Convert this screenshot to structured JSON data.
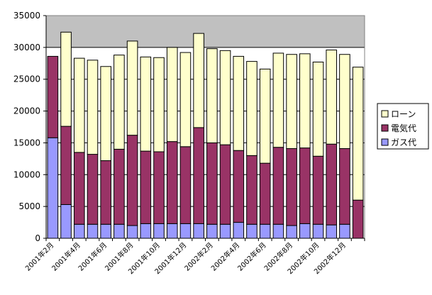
{
  "chart_data": {
    "type": "bar",
    "stacked": true,
    "categories": [
      "2001年2月",
      "2001年3月",
      "2001年4月",
      "2001年5月",
      "2001年6月",
      "2001年7月",
      "2001年8月",
      "2001年9月",
      "2001年10月",
      "2001年11月",
      "2001年12月",
      "2002年1月",
      "2002年2月",
      "2002年3月",
      "2002年4月",
      "2002年5月",
      "2002年6月",
      "2002年7月",
      "2002年8月",
      "2002年9月",
      "2002年10月",
      "2002年11月",
      "2002年12月",
      "2003年1月"
    ],
    "visible_tick_labels": [
      "2001年2月",
      "2001年4月",
      "2001年6月",
      "2001年8月",
      "2001年10月",
      "2001年12月",
      "2002年2月",
      "2002年4月",
      "2002年6月",
      "2002年8月",
      "2002年10月",
      "2002年12月"
    ],
    "series": [
      {
        "name": "ガス代",
        "color": "#9999FF",
        "values": [
          15800,
          5300,
          2200,
          2200,
          2200,
          2200,
          2000,
          2300,
          2300,
          2300,
          2300,
          2300,
          2200,
          2200,
          2500,
          2200,
          2200,
          2200,
          2000,
          2300,
          2200,
          2100,
          2200,
          0
        ]
      },
      {
        "name": "電気代",
        "color": "#993366",
        "values": [
          12800,
          12300,
          11300,
          11000,
          10000,
          11800,
          14200,
          11400,
          11300,
          12900,
          12100,
          15100,
          12800,
          12500,
          11300,
          10800,
          9600,
          12100,
          12100,
          11900,
          10700,
          12700,
          11900,
          6000
        ]
      },
      {
        "name": "ローン",
        "color": "#FFFFCC",
        "values": [
          0,
          14800,
          14800,
          14800,
          14800,
          14800,
          14800,
          14800,
          14800,
          14800,
          14800,
          14800,
          14800,
          14800,
          14800,
          14800,
          14800,
          14800,
          14800,
          14800,
          14800,
          14800,
          14800,
          20900
        ]
      }
    ],
    "y_ticks": [
      "0",
      "5000",
      "10000",
      "15000",
      "20000",
      "25000",
      "30000",
      "35000"
    ],
    "ylim": [
      0,
      35000
    ],
    "title": "",
    "xlabel": "",
    "ylabel": "",
    "legend": {
      "placement": "right",
      "items": [
        "ローン",
        "電気代",
        "ガス代"
      ]
    },
    "plot_background": "#C0C0C0",
    "grid": true
  }
}
